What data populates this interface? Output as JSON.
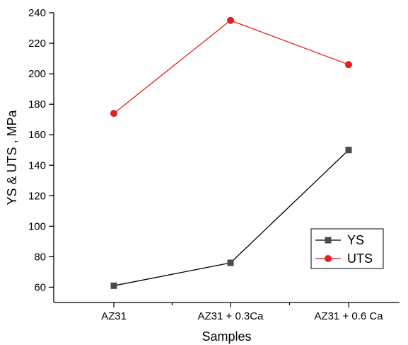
{
  "chart_data": {
    "type": "line",
    "categories": [
      "AZ31",
      "AZ31 + 0.3Ca",
      "AZ31 + 0.6 Ca"
    ],
    "series": [
      {
        "name": "YS",
        "values": [
          61,
          76,
          150
        ],
        "color": "#000000",
        "marker": "square",
        "marker_color": "#4a4a4a"
      },
      {
        "name": "UTS",
        "values": [
          174,
          235,
          206
        ],
        "color": "#e02020",
        "marker": "circle",
        "marker_color": "#e02020"
      }
    ],
    "title": "",
    "xlabel": "Samples",
    "ylabel": "YS & UTS , MPa",
    "ylim": [
      50,
      240
    ],
    "yticks": [
      60,
      80,
      100,
      120,
      140,
      160,
      180,
      200,
      220,
      240
    ],
    "grid": false,
    "legend_position": "bottom-right"
  }
}
